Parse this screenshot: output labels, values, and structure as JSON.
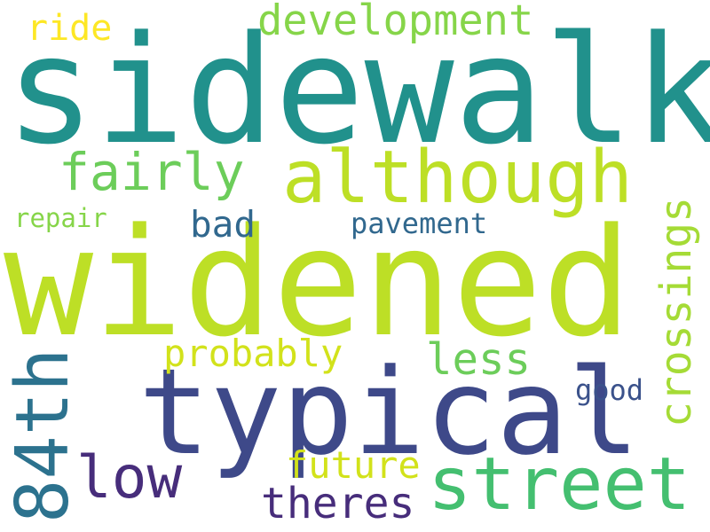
{
  "words": [
    {
      "id": "sidewalk",
      "text": "sidewalk",
      "color": "#21918c"
    },
    {
      "id": "widened",
      "text": "widened",
      "color": "#bddf26"
    },
    {
      "id": "typical",
      "text": "typical",
      "color": "#3e4989"
    },
    {
      "id": "although",
      "text": "although",
      "color": "#bddf26"
    },
    {
      "id": "street",
      "text": "street",
      "color": "#44bf70"
    },
    {
      "id": "84th",
      "text": "84th",
      "color": "#2c728e"
    },
    {
      "id": "development",
      "text": "development",
      "color": "#86d549"
    },
    {
      "id": "fairly",
      "text": "fairly",
      "color": "#6ccd5a"
    },
    {
      "id": "low",
      "text": "low",
      "color": "#472d7b"
    },
    {
      "id": "crossings",
      "text": "crossings",
      "color": "#a5db36"
    },
    {
      "id": "probably",
      "text": "probably",
      "color": "#d2e21b"
    },
    {
      "id": "less",
      "text": "less",
      "color": "#6ccd5a"
    },
    {
      "id": "theres",
      "text": "theres",
      "color": "#472d7b"
    },
    {
      "id": "future",
      "text": "future",
      "color": "#d2e21b"
    },
    {
      "id": "bad",
      "text": "bad",
      "color": "#31688e"
    },
    {
      "id": "pavement",
      "text": "pavement",
      "color": "#31688e"
    },
    {
      "id": "ride",
      "text": "ride",
      "color": "#fde725"
    },
    {
      "id": "repair",
      "text": "repair",
      "color": "#86d549"
    },
    {
      "id": "good",
      "text": "good",
      "color": "#3b528b"
    }
  ]
}
